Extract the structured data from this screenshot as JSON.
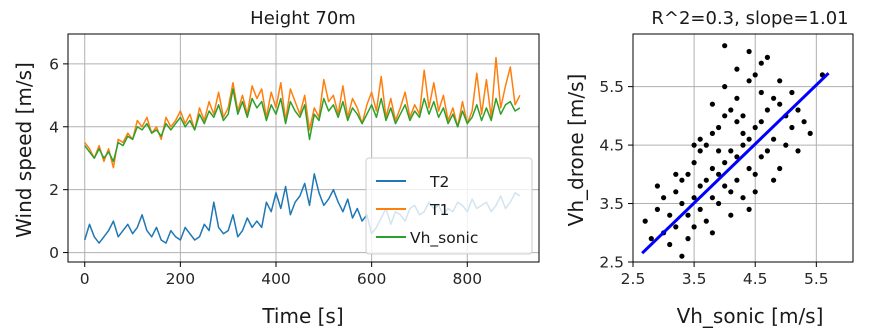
{
  "chart_data": [
    {
      "type": "line",
      "title": "Height 70m",
      "xlabel": "Time [s]",
      "ylabel": "Wind speed [m/s]",
      "xlim": [
        -35,
        950
      ],
      "ylim": [
        -0.3,
        6.95
      ],
      "xticks": [
        0,
        200,
        400,
        600,
        800
      ],
      "yticks": [
        0,
        2,
        4,
        6
      ],
      "grid": true,
      "legend_position": "lower-right",
      "series": [
        {
          "name": "T2",
          "color": "#1f77b4",
          "x": [
            0,
            10,
            20,
            30,
            40,
            50,
            60,
            70,
            80,
            90,
            100,
            110,
            120,
            130,
            140,
            150,
            160,
            170,
            180,
            190,
            200,
            210,
            220,
            230,
            240,
            250,
            260,
            270,
            280,
            290,
            300,
            310,
            320,
            330,
            340,
            350,
            360,
            370,
            380,
            390,
            400,
            410,
            420,
            430,
            440,
            450,
            460,
            470,
            480,
            490,
            500,
            510,
            520,
            530,
            540,
            550,
            560,
            570,
            580,
            590,
            600,
            610,
            620,
            630,
            640,
            650,
            660,
            670,
            680,
            690,
            700,
            710,
            720,
            730,
            740,
            750,
            760,
            770,
            780,
            790,
            800,
            810,
            820,
            830,
            840,
            850,
            860,
            870,
            880,
            890,
            900,
            910
          ],
          "y": [
            0.4,
            0.9,
            0.5,
            0.3,
            0.5,
            0.7,
            1.0,
            0.5,
            0.7,
            0.9,
            0.6,
            0.8,
            1.2,
            0.7,
            0.5,
            0.8,
            0.4,
            0.3,
            0.7,
            0.5,
            0.4,
            0.8,
            0.6,
            0.4,
            0.5,
            0.9,
            0.7,
            1.6,
            0.8,
            0.6,
            0.7,
            1.2,
            0.5,
            0.7,
            1.1,
            0.8,
            1.0,
            0.8,
            1.6,
            1.3,
            1.9,
            1.4,
            2.1,
            1.2,
            1.6,
            1.8,
            2.2,
            1.5,
            2.5,
            1.9,
            1.5,
            1.7,
            2.0,
            1.6,
            1.3,
            1.7,
            1.1,
            1.4,
            1.0,
            1.2,
            0.6,
            0.8,
            1.1,
            1.4,
            0.9,
            1.3,
            1.2,
            1.0,
            1.4,
            1.5,
            1.2,
            1.3,
            1.6,
            1.4,
            1.5,
            1.2,
            1.4,
            1.3,
            1.6,
            1.5,
            1.3,
            1.7,
            1.4,
            1.5,
            1.6,
            1.3,
            1.5,
            1.8,
            1.4,
            1.6,
            1.9,
            1.8
          ]
        },
        {
          "name": "T1",
          "color": "#ff7f0e",
          "x": [
            0,
            10,
            20,
            30,
            40,
            50,
            60,
            70,
            80,
            90,
            100,
            110,
            120,
            130,
            140,
            150,
            160,
            170,
            180,
            190,
            200,
            210,
            220,
            230,
            240,
            250,
            260,
            270,
            280,
            290,
            300,
            310,
            320,
            330,
            340,
            350,
            360,
            370,
            380,
            390,
            400,
            410,
            420,
            430,
            440,
            450,
            460,
            470,
            480,
            490,
            500,
            510,
            520,
            530,
            540,
            550,
            560,
            570,
            580,
            590,
            600,
            610,
            620,
            630,
            640,
            650,
            660,
            670,
            680,
            690,
            700,
            710,
            720,
            730,
            740,
            750,
            760,
            770,
            780,
            790,
            800,
            810,
            820,
            830,
            840,
            850,
            860,
            870,
            880,
            890,
            900,
            910
          ],
          "y": [
            3.5,
            3.3,
            3.0,
            3.4,
            2.9,
            3.3,
            2.7,
            3.6,
            3.5,
            3.8,
            3.6,
            4.2,
            4.0,
            4.3,
            3.8,
            4.0,
            3.6,
            4.3,
            4.0,
            4.2,
            4.5,
            4.1,
            4.4,
            3.9,
            4.6,
            4.2,
            4.8,
            4.4,
            5.1,
            4.3,
            4.6,
            5.4,
            4.5,
            5.0,
            4.4,
            5.3,
            4.9,
            5.2,
            4.3,
            5.1,
            4.6,
            5.4,
            4.2,
            5.2,
            4.8,
            4.4,
            5.0,
            3.9,
            4.6,
            4.3,
            5.5,
            4.8,
            5.0,
            4.4,
            5.3,
            4.3,
            4.9,
            4.6,
            4.1,
            4.7,
            5.1,
            4.5,
            5.6,
            4.3,
            4.9,
            4.2,
            4.6,
            5.1,
            4.3,
            4.7,
            4.4,
            5.8,
            4.6,
            5.4,
            4.5,
            5.0,
            4.2,
            4.6,
            4.0,
            4.8,
            4.1,
            4.5,
            5.7,
            4.4,
            5.5,
            4.3,
            6.2,
            4.6,
            5.3,
            5.9,
            4.7,
            5.0
          ]
        },
        {
          "name": "Vh_sonic",
          "color": "#2ca02c",
          "x": [
            0,
            10,
            20,
            30,
            40,
            50,
            60,
            70,
            80,
            90,
            100,
            110,
            120,
            130,
            140,
            150,
            160,
            170,
            180,
            190,
            200,
            210,
            220,
            230,
            240,
            250,
            260,
            270,
            280,
            290,
            300,
            310,
            320,
            330,
            340,
            350,
            360,
            370,
            380,
            390,
            400,
            410,
            420,
            430,
            440,
            450,
            460,
            470,
            480,
            490,
            500,
            510,
            520,
            530,
            540,
            550,
            560,
            570,
            580,
            590,
            600,
            610,
            620,
            630,
            640,
            650,
            660,
            670,
            680,
            690,
            700,
            710,
            720,
            730,
            740,
            750,
            760,
            770,
            780,
            790,
            800,
            810,
            820,
            830,
            840,
            850,
            860,
            870,
            880,
            890,
            900,
            910
          ],
          "y": [
            3.4,
            3.2,
            3.0,
            3.3,
            3.0,
            3.2,
            2.9,
            3.5,
            3.4,
            3.7,
            3.6,
            4.0,
            3.9,
            4.1,
            3.8,
            3.9,
            3.7,
            4.1,
            3.9,
            4.1,
            4.3,
            4.0,
            4.2,
            3.9,
            4.4,
            4.1,
            4.5,
            4.3,
            4.7,
            4.2,
            4.4,
            5.2,
            4.4,
            4.8,
            4.3,
            4.9,
            4.6,
            4.8,
            4.2,
            4.7,
            4.4,
            4.9,
            4.1,
            4.8,
            4.5,
            4.3,
            4.7,
            3.6,
            4.4,
            4.2,
            4.9,
            4.5,
            4.7,
            4.3,
            4.8,
            4.2,
            4.6,
            4.4,
            4.1,
            4.4,
            4.7,
            4.3,
            4.9,
            4.2,
            4.6,
            4.1,
            4.4,
            4.7,
            4.2,
            4.5,
            4.3,
            4.9,
            4.4,
            4.8,
            4.3,
            4.6,
            4.1,
            4.4,
            4.0,
            4.5,
            4.1,
            4.3,
            4.7,
            4.2,
            4.6,
            4.2,
            4.9,
            4.4,
            4.7,
            4.8,
            4.5,
            4.6
          ]
        }
      ]
    },
    {
      "type": "scatter",
      "title": "R^2=0.3, slope=1.01",
      "xlabel": "Vh_sonic [m/s]",
      "ylabel": "Vh_drone [m/s]",
      "xlim": [
        2.5,
        6.1
      ],
      "ylim": [
        2.5,
        6.4
      ],
      "xticks": [
        2.5,
        3.5,
        4.5,
        5.5
      ],
      "yticks": [
        2.5,
        3.5,
        4.5,
        5.5
      ],
      "grid": true,
      "point_color": "#000000",
      "fit_line": {
        "color": "#0000ff",
        "x": [
          2.65,
          5.7
        ],
        "y": [
          2.65,
          5.73
        ]
      },
      "points": {
        "x": [
          2.7,
          2.8,
          2.9,
          3.0,
          3.0,
          3.1,
          3.1,
          3.2,
          3.2,
          3.3,
          3.3,
          3.4,
          3.4,
          3.4,
          3.5,
          3.5,
          3.5,
          3.6,
          3.6,
          3.6,
          3.7,
          3.7,
          3.7,
          3.8,
          3.8,
          3.8,
          3.8,
          3.9,
          3.9,
          3.9,
          4.0,
          4.0,
          4.0,
          4.0,
          4.1,
          4.1,
          4.1,
          4.2,
          4.2,
          4.2,
          4.2,
          4.3,
          4.3,
          4.3,
          4.4,
          4.4,
          4.4,
          4.4,
          4.5,
          4.5,
          4.5,
          4.6,
          4.6,
          4.6,
          4.7,
          4.7,
          4.7,
          4.8,
          4.8,
          4.9,
          4.9,
          5.0,
          5.0,
          5.1,
          5.1,
          5.2,
          5.3,
          5.4,
          5.6,
          2.9,
          3.2,
          3.6,
          3.9,
          4.3,
          4.6,
          4.9,
          5.2,
          3.3,
          3.8,
          4.1,
          4.5,
          4.8,
          4.0,
          4.4,
          3.5,
          4.2
        ],
        "y": [
          3.2,
          2.9,
          3.4,
          3.0,
          3.6,
          3.3,
          2.8,
          3.7,
          3.1,
          3.5,
          3.9,
          3.3,
          4.0,
          2.9,
          3.6,
          4.2,
          3.1,
          3.8,
          4.4,
          3.4,
          3.9,
          4.5,
          3.2,
          4.1,
          4.7,
          3.6,
          5.2,
          4.0,
          4.8,
          3.5,
          4.2,
          5.0,
          3.8,
          5.5,
          4.4,
          5.1,
          3.7,
          4.3,
          5.3,
          3.9,
          5.8,
          4.5,
          5.0,
          3.6,
          4.6,
          5.6,
          4.1,
          3.4,
          4.8,
          5.7,
          4.0,
          4.9,
          5.4,
          4.3,
          5.1,
          6.0,
          4.4,
          5.3,
          4.6,
          5.2,
          4.1,
          5.0,
          4.5,
          5.4,
          4.8,
          5.1,
          4.9,
          4.7,
          5.7,
          3.8,
          4.0,
          4.6,
          4.4,
          4.7,
          5.9,
          5.6,
          4.4,
          2.6,
          3.0,
          3.3,
          3.7,
          3.9,
          6.2,
          6.1,
          4.5,
          4.9
        ]
      }
    }
  ]
}
